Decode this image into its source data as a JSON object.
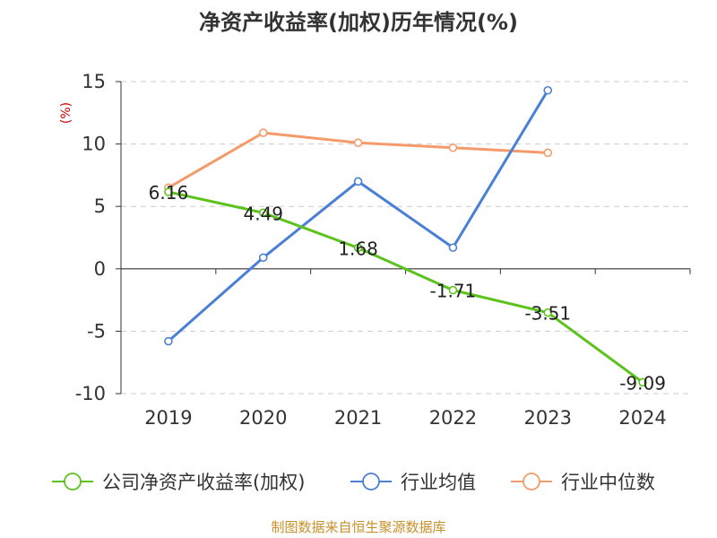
{
  "chart_data": {
    "type": "line",
    "title": "净资产收益率(加权)历年情况(%)",
    "ylabel": "(%)",
    "categories": [
      "2019",
      "2020",
      "2021",
      "2022",
      "2023",
      "2024"
    ],
    "ylim": [
      -10,
      15
    ],
    "yticks": [
      15,
      10,
      5,
      0,
      -5,
      -10
    ],
    "grid": true,
    "legend_position": "bottom",
    "series": [
      {
        "name": "公司净资产收益率(加权)",
        "color": "#5cc21c",
        "values": [
          6.16,
          4.49,
          1.68,
          -1.71,
          -3.51,
          -9.09
        ],
        "labels": [
          "6.16",
          "4.49",
          "1.68",
          "-1.71",
          "-3.51",
          "-9.09"
        ]
      },
      {
        "name": "行业均值",
        "color": "#4a7fd6",
        "values": [
          -5.8,
          0.9,
          7.0,
          1.7,
          14.3,
          null
        ]
      },
      {
        "name": "行业中位数",
        "color": "#f59a6a",
        "values": [
          6.5,
          10.9,
          10.1,
          9.7,
          9.3,
          null
        ]
      }
    ],
    "source": "制图数据来自恒生聚源数据库"
  }
}
